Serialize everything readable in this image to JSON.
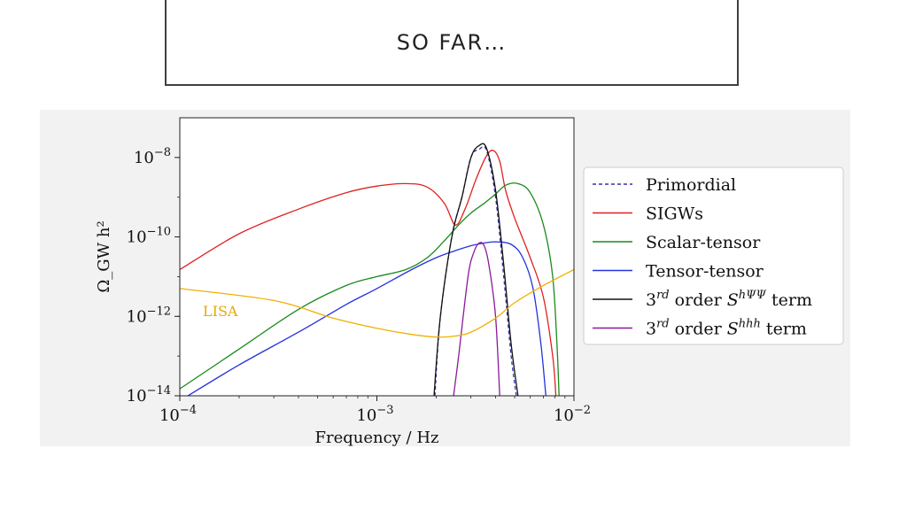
{
  "slide": {
    "title": "SO FAR…"
  },
  "chart_data": {
    "type": "line",
    "xlabel": "Frequency / Hz",
    "ylabel": "Ω_GW h²",
    "x_scale": "log",
    "y_scale": "log",
    "xlim": [
      0.0001,
      0.01
    ],
    "ylim": [
      1e-14,
      1e-07
    ],
    "x_ticks": [
      {
        "value": 0.0001,
        "base": "10",
        "exp": "−4"
      },
      {
        "value": 0.001,
        "base": "10",
        "exp": "−3"
      },
      {
        "value": 0.01,
        "base": "10",
        "exp": "−2"
      }
    ],
    "y_ticks": [
      {
        "value": 1e-14,
        "base": "10",
        "exp": "−14"
      },
      {
        "value": 1e-12,
        "base": "10",
        "exp": "−12"
      },
      {
        "value": 1e-10,
        "base": "10",
        "exp": "−10"
      },
      {
        "value": 1e-08,
        "base": "10",
        "exp": "−8"
      }
    ],
    "legend_position": "right, outside plot",
    "annotation": {
      "text": "LISA",
      "color": "#e8a800"
    },
    "series": [
      {
        "name": "Primordial",
        "color": "#3333aa",
        "dash": true,
        "points": [
          [
            0.00197,
            1e-14
          ],
          [
            0.0021,
            1e-12
          ],
          [
            0.0024,
            1e-10
          ],
          [
            0.0027,
            1e-09
          ],
          [
            0.003,
            1e-08
          ],
          [
            0.0033,
            1.6e-08
          ],
          [
            0.0036,
            1.5e-08
          ],
          [
            0.004,
            1e-09
          ],
          [
            0.0044,
            1e-11
          ],
          [
            0.0048,
            1e-13
          ],
          [
            0.0051,
            1e-14
          ]
        ]
      },
      {
        "name": "SIGWs",
        "color": "#e02020",
        "dash": false,
        "points": [
          [
            0.0001,
            1.5e-11
          ],
          [
            0.0002,
            1.2e-10
          ],
          [
            0.0004,
            5e-10
          ],
          [
            0.0007,
            1.3e-09
          ],
          [
            0.001,
            1.9e-09
          ],
          [
            0.0014,
            2.2e-09
          ],
          [
            0.0018,
            1.8e-09
          ],
          [
            0.0022,
            7e-10
          ],
          [
            0.0025,
            2e-10
          ],
          [
            0.0028,
            5e-10
          ],
          [
            0.0032,
            3e-09
          ],
          [
            0.0036,
            1.1e-08
          ],
          [
            0.0039,
            1.5e-08
          ],
          [
            0.0042,
            8e-09
          ],
          [
            0.0045,
            1.5e-09
          ],
          [
            0.005,
            3e-10
          ],
          [
            0.006,
            3e-11
          ],
          [
            0.007,
            3e-12
          ],
          [
            0.0078,
            1e-13
          ],
          [
            0.0081,
            1e-14
          ]
        ]
      },
      {
        "name": "Scalar-tensor",
        "color": "#1a8a1a",
        "dash": false,
        "points": [
          [
            0.0001,
            1.5e-14
          ],
          [
            0.0002,
            1.5e-13
          ],
          [
            0.0004,
            1.5e-12
          ],
          [
            0.0007,
            6e-12
          ],
          [
            0.001,
            1e-11
          ],
          [
            0.0014,
            1.5e-11
          ],
          [
            0.0018,
            3e-11
          ],
          [
            0.0022,
            8e-11
          ],
          [
            0.0026,
            2e-10
          ],
          [
            0.003,
            4e-10
          ],
          [
            0.0035,
            7e-10
          ],
          [
            0.004,
            1.2e-09
          ],
          [
            0.0045,
            2e-09
          ],
          [
            0.0052,
            2.2e-09
          ],
          [
            0.006,
            1.3e-09
          ],
          [
            0.007,
            2e-10
          ],
          [
            0.0078,
            1e-11
          ],
          [
            0.0082,
            2e-13
          ],
          [
            0.0084,
            1e-14
          ]
        ]
      },
      {
        "name": "Tensor-tensor",
        "color": "#2233dd",
        "dash": false,
        "points": [
          [
            0.00011,
            1e-14
          ],
          [
            0.0002,
            6e-14
          ],
          [
            0.0004,
            4e-13
          ],
          [
            0.0007,
            2e-12
          ],
          [
            0.001,
            5e-12
          ],
          [
            0.0015,
            1.5e-11
          ],
          [
            0.002,
            3e-11
          ],
          [
            0.0025,
            4.5e-11
          ],
          [
            0.003,
            6e-11
          ],
          [
            0.0035,
            7e-11
          ],
          [
            0.004,
            7.5e-11
          ],
          [
            0.0048,
            6.5e-11
          ],
          [
            0.0055,
            3e-11
          ],
          [
            0.0062,
            5e-12
          ],
          [
            0.0068,
            2e-13
          ],
          [
            0.0072,
            1e-14
          ]
        ]
      },
      {
        "name": "3rd order S^{hΨΨ} term",
        "color": "#111111",
        "dash": false,
        "legend_parts": [
          "3",
          "rd",
          " order ",
          "S",
          "hΨΨ",
          " term"
        ],
        "points": [
          [
            0.00195,
            1e-14
          ],
          [
            0.0021,
            1e-12
          ],
          [
            0.0024,
            1e-10
          ],
          [
            0.0027,
            1e-09
          ],
          [
            0.003,
            1e-08
          ],
          [
            0.0033,
            2e-08
          ],
          [
            0.0036,
            1.7e-08
          ],
          [
            0.004,
            1.5e-09
          ],
          [
            0.0044,
            2e-11
          ],
          [
            0.0048,
            2e-13
          ],
          [
            0.0052,
            1e-14
          ]
        ]
      },
      {
        "name": "3rd order S^{hhh} term",
        "color": "#8a1a9a",
        "dash": false,
        "legend_parts": [
          "3",
          "rd",
          " order ",
          "S",
          "hhh",
          " term"
        ],
        "points": [
          [
            0.00245,
            1e-14
          ],
          [
            0.0026,
            1e-13
          ],
          [
            0.0029,
            1e-11
          ],
          [
            0.0031,
            4e-11
          ],
          [
            0.0033,
            7e-11
          ],
          [
            0.0035,
            6e-11
          ],
          [
            0.0037,
            2e-11
          ],
          [
            0.004,
            1e-12
          ],
          [
            0.0042,
            1e-14
          ]
        ]
      },
      {
        "name": "LISA",
        "color": "#f0b000",
        "dash": false,
        "in_legend": false,
        "points": [
          [
            0.0001,
            5e-12
          ],
          [
            0.0003,
            2.5e-12
          ],
          [
            0.0006,
            9e-13
          ],
          [
            0.001,
            5e-13
          ],
          [
            0.0015,
            3.5e-13
          ],
          [
            0.002,
            3e-13
          ],
          [
            0.0025,
            3.2e-13
          ],
          [
            0.003,
            4e-13
          ],
          [
            0.004,
            9e-13
          ],
          [
            0.005,
            2.2e-12
          ],
          [
            0.007,
            6e-12
          ],
          [
            0.01,
            1.5e-11
          ]
        ]
      }
    ]
  }
}
